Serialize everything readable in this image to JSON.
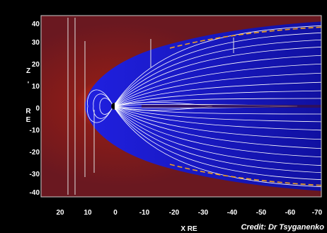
{
  "figure": {
    "x_axis": {
      "ticks": [
        "20",
        "10",
        "0",
        "-10",
        "-20",
        "-30",
        "-40",
        "-50",
        "-60",
        "-70"
      ],
      "label": "X RE"
    },
    "y_axis": {
      "ticks": [
        "40",
        "30",
        "20",
        "10",
        "0",
        "-10",
        "-20",
        "-30",
        "-40"
      ],
      "label_chars": [
        "Z",
        "'",
        "R",
        "E"
      ]
    },
    "credit": "Credit: Dr Tsyganenko",
    "colors": {
      "background": "#000000",
      "plot_field": "#6a1820",
      "magnetosphere": "#1a1ad0",
      "field_lines": "#ffffff",
      "magnetopause": "#f0a020",
      "bow_shock_glow": "#ffd020"
    }
  }
}
